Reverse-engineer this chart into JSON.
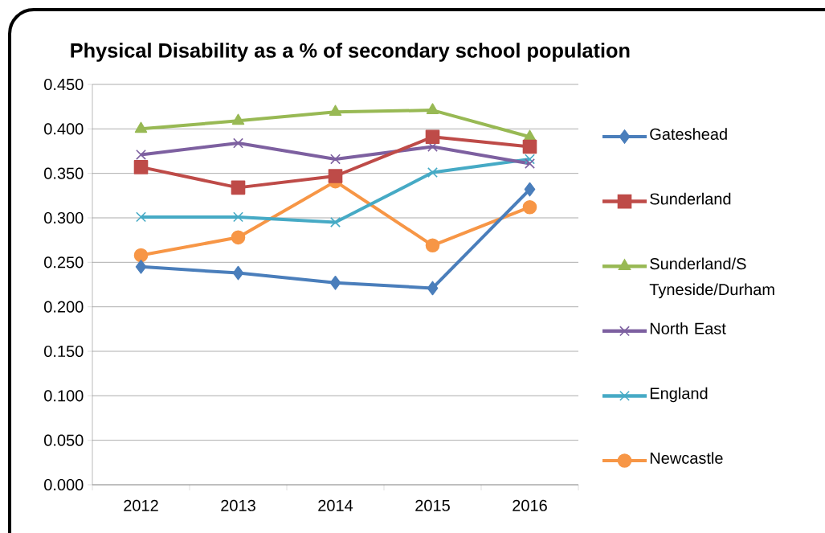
{
  "chart_data": {
    "type": "line",
    "title": "Physical Disability as a % of secondary school population",
    "categories": [
      "2012",
      "2013",
      "2014",
      "2015",
      "2016"
    ],
    "ylim": [
      0,
      0.45
    ],
    "yticks": [
      {
        "value": 0,
        "label": "0.000"
      },
      {
        "value": 0.05,
        "label": "0.050"
      },
      {
        "value": 0.1,
        "label": "0.100"
      },
      {
        "value": 0.15,
        "label": "0.150"
      },
      {
        "value": 0.2,
        "label": "0.200"
      },
      {
        "value": 0.25,
        "label": "0.250"
      },
      {
        "value": 0.3,
        "label": "0.300"
      },
      {
        "value": 0.35,
        "label": "0.350"
      },
      {
        "value": 0.4,
        "label": "0.400"
      },
      {
        "value": 0.45,
        "label": "0.450"
      }
    ],
    "grid": "y",
    "legend": "right",
    "line_style": "solid",
    "series": [
      {
        "name": "Gateshead",
        "color": "#4a7ebb",
        "marker": "diamond",
        "values": [
          0.245,
          0.238,
          0.227,
          0.221,
          0.332
        ]
      },
      {
        "name": "Sunderland",
        "color": "#be4b48",
        "marker": "square",
        "values": [
          0.357,
          0.334,
          0.347,
          0.391,
          0.38
        ]
      },
      {
        "name": "Sunderland/S Tyneside/Durham",
        "color": "#98b954",
        "marker": "triangle",
        "values": [
          0.4,
          0.409,
          0.419,
          0.421,
          0.391
        ]
      },
      {
        "name": "North East",
        "color": "#7d60a0",
        "marker": "cross",
        "values": [
          0.371,
          0.384,
          0.366,
          0.38,
          0.361
        ]
      },
      {
        "name": "England",
        "color": "#46aac5",
        "marker": "cross",
        "values": [
          0.301,
          0.301,
          0.295,
          0.351,
          0.366
        ]
      },
      {
        "name": "Newcastle",
        "color": "#f79646",
        "marker": "circle",
        "values": [
          0.258,
          0.278,
          0.341,
          0.269,
          0.312
        ]
      }
    ]
  }
}
